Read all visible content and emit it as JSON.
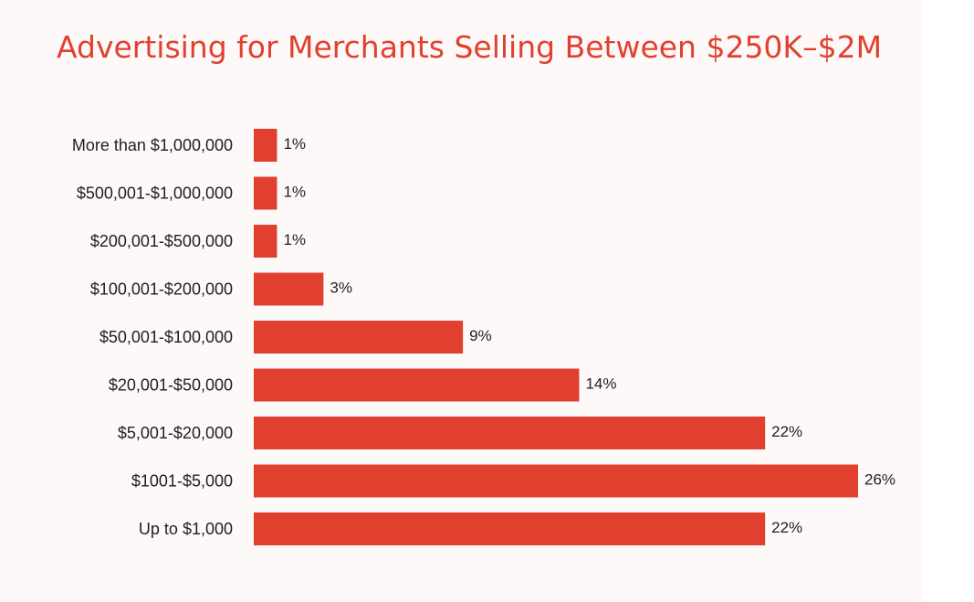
{
  "chart_data": {
    "type": "bar",
    "orientation": "horizontal",
    "title": "Advertising for Merchants Selling Between $250K–$2M",
    "categories": [
      "More than $1,000,000",
      "$500,001-$1,000,000",
      "$200,001-$500,000",
      "$100,001-$200,000",
      "$50,001-$100,000",
      "$20,001-$50,000",
      "$5,001-$20,000",
      "$1001-$5,000",
      "Up to $1,000"
    ],
    "values": [
      1,
      1,
      1,
      3,
      9,
      14,
      22,
      26,
      22
    ],
    "value_labels": [
      "1%",
      "1%",
      "1%",
      "3%",
      "9%",
      "14%",
      "22%",
      "26%",
      "22%"
    ],
    "unit": "%",
    "xlim": [
      0,
      26
    ],
    "grid": false,
    "legend": "none",
    "colors": {
      "bar": "#e2402f",
      "title": "#e2402f",
      "text": "#1f1f1f",
      "background": "#fdf9f8"
    }
  }
}
